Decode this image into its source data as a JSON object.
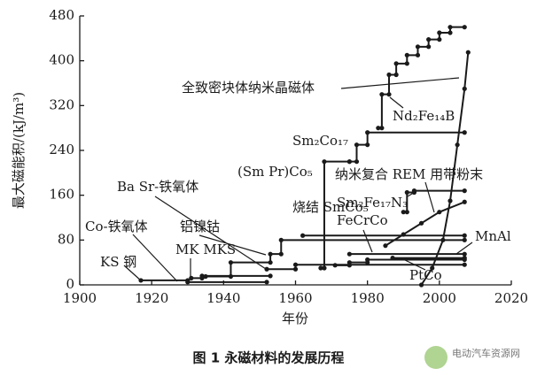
{
  "chart_data": {
    "type": "line",
    "ylabel": "最大磁能积/(kJ/m³)",
    "xlabel": "年份",
    "caption": "图 1  永磁材料的发展历程",
    "watermark": "电动汽车资源网",
    "color": "#1a1a1a",
    "xlim": [
      1900,
      2020
    ],
    "xticks": [
      1900,
      1920,
      1940,
      1960,
      1980,
      2000,
      2020
    ],
    "ylim": [
      0,
      480
    ],
    "yticks": [
      0,
      80,
      160,
      240,
      320,
      400,
      480
    ],
    "series": [
      {
        "name": "KS 钢",
        "x": [
          1917,
          1930
        ],
        "values": [
          8,
          8
        ]
      },
      {
        "name": "MK MKS",
        "x": [
          1931,
          1934,
          1934,
          1953
        ],
        "values": [
          12,
          12,
          16,
          16
        ]
      },
      {
        "name": "Co-铁氧体",
        "x": [
          1930,
          1952
        ],
        "values": [
          5,
          5
        ]
      },
      {
        "name": "铝镍钴",
        "x": [
          1935,
          1942,
          1942,
          1953,
          1953,
          1956,
          1956,
          2007
        ],
        "values": [
          15,
          15,
          40,
          40,
          55,
          55,
          80,
          80
        ]
      },
      {
        "name": "Ba Sr-铁氧体",
        "x": [
          1952,
          1960,
          1960,
          2007
        ],
        "values": [
          28,
          28,
          36,
          36
        ]
      },
      {
        "name": "烧结 SmCo₅",
        "x": [
          1962,
          2007
        ],
        "values": [
          88,
          88
        ]
      },
      {
        "name": "(Sm Pr)Co₅",
        "x": [
          1967,
          1968,
          1968,
          1975
        ],
        "values": [
          30,
          30,
          220,
          220
        ]
      },
      {
        "name": "Sm₂Co₁₇",
        "x": [
          1975,
          1977,
          1977,
          1980,
          1980,
          2007
        ],
        "values": [
          220,
          220,
          250,
          250,
          272,
          272
        ]
      },
      {
        "name": "Nd₂Fe₁₄B",
        "x": [
          1983,
          1984,
          1984,
          1986,
          1986,
          1988,
          1988,
          1991,
          1991,
          1994,
          1994,
          1997,
          1997,
          2000,
          2000,
          2003,
          2003,
          2007
        ],
        "values": [
          280,
          280,
          340,
          340,
          375,
          375,
          395,
          395,
          410,
          410,
          425,
          425,
          438,
          438,
          450,
          450,
          460,
          460
        ]
      },
      {
        "name": "全致密块体纳米晶磁体",
        "x": [
          1995,
          1998,
          2001,
          2003,
          2005,
          2007,
          2008
        ],
        "values": [
          0,
          30,
          80,
          150,
          250,
          350,
          415
        ]
      },
      {
        "name": "纳米复合 REM 用带粉末",
        "x": [
          1985,
          1990,
          1995,
          2000,
          2007
        ],
        "values": [
          70,
          90,
          110,
          130,
          148
        ]
      },
      {
        "name": "Sm₂Fe₁₇N₃",
        "x": [
          1990,
          1991,
          1991,
          1993,
          1993,
          2007
        ],
        "values": [
          130,
          130,
          165,
          165,
          168,
          168
        ]
      },
      {
        "name": "FeCrCo",
        "x": [
          1971,
          1975,
          1975,
          1980,
          1980,
          2007
        ],
        "values": [
          35,
          35,
          40,
          40,
          45,
          45
        ]
      },
      {
        "name": "MnAl",
        "x": [
          1975,
          2007
        ],
        "values": [
          55,
          55
        ]
      },
      {
        "name": "PtCo",
        "x": [
          1987,
          2007
        ],
        "values": [
          48,
          48
        ]
      }
    ]
  }
}
